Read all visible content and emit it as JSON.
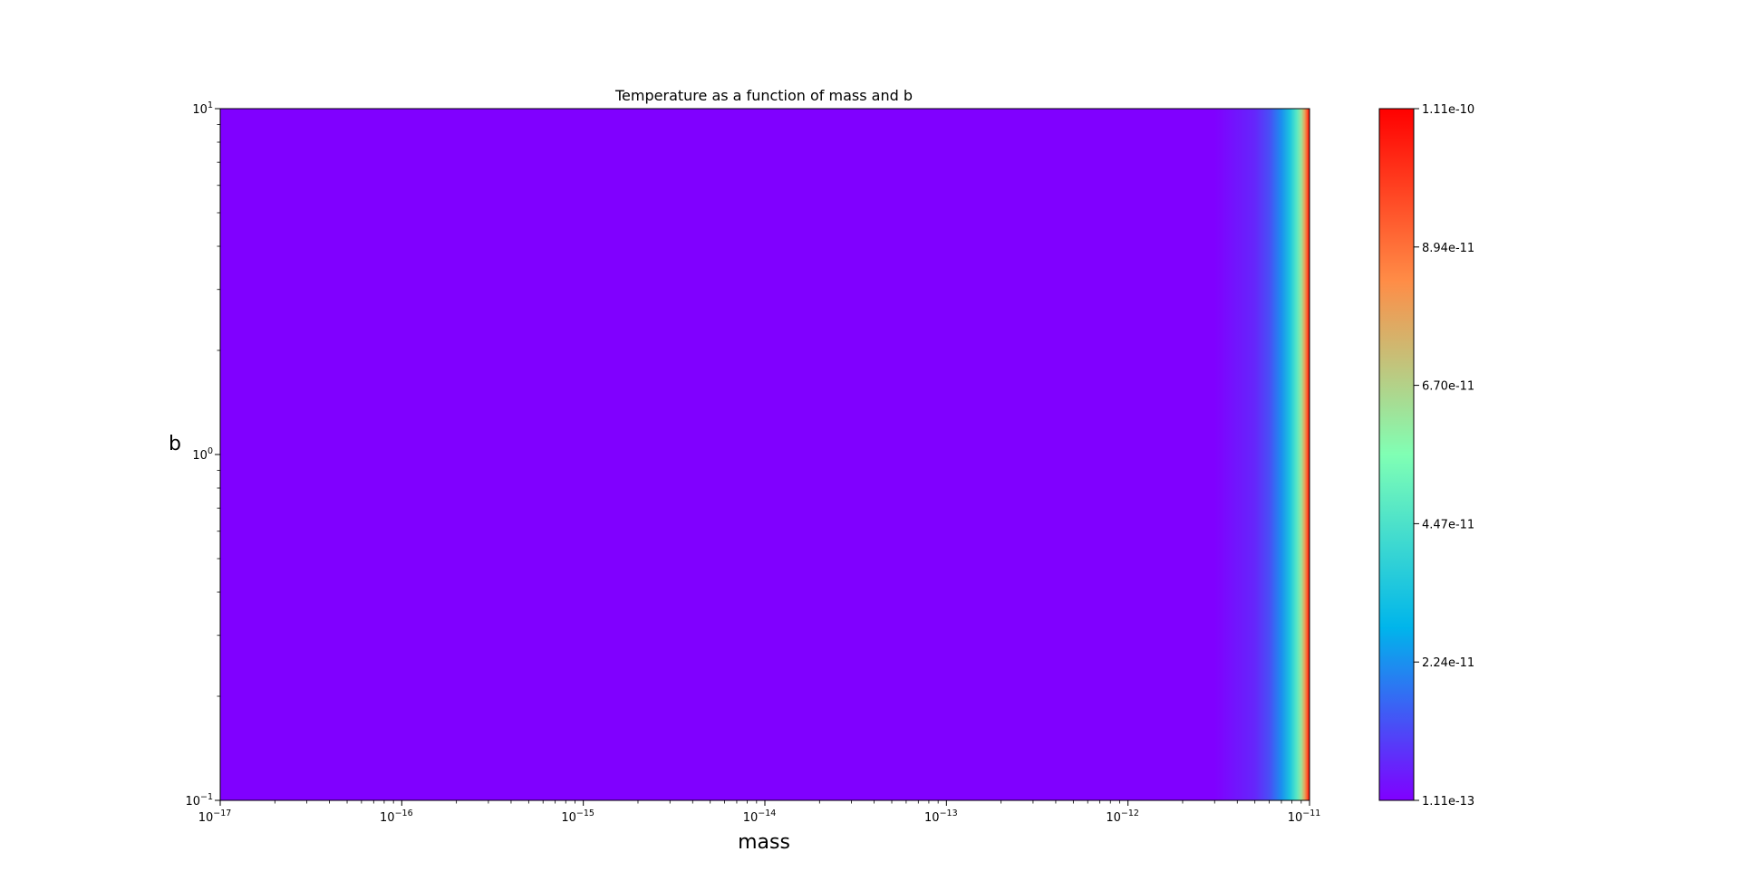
{
  "chart_data": {
    "type": "heatmap",
    "title": "Temperature as a function of mass and b",
    "xlabel": "mass",
    "ylabel": "b",
    "x_scale": "log",
    "y_scale": "log",
    "xlim": [
      1e-17,
      1e-11
    ],
    "ylim": [
      0.1,
      10
    ],
    "x_ticks": [
      {
        "base": "10",
        "exp": "−17"
      },
      {
        "base": "10",
        "exp": "−16"
      },
      {
        "base": "10",
        "exp": "−15"
      },
      {
        "base": "10",
        "exp": "−14"
      },
      {
        "base": "10",
        "exp": "−13"
      },
      {
        "base": "10",
        "exp": "−12"
      },
      {
        "base": "10",
        "exp": "−11"
      }
    ],
    "y_ticks": [
      {
        "base": "10",
        "exp": "−1"
      },
      {
        "base": "10",
        "exp": "0"
      },
      {
        "base": "10",
        "exp": "1"
      }
    ],
    "colormap": "rainbow",
    "colormap_colors": [
      "#8000ff",
      "#00b5eb",
      "#80ffb4",
      "#ff8d47",
      "#ff0000"
    ],
    "colorbar": {
      "vmin": 1.11e-13,
      "vmax": 1.11e-10,
      "tick_labels": [
        "1.11e-13",
        "2.24e-11",
        "4.47e-11",
        "6.70e-11",
        "8.94e-11",
        "1.11e-10"
      ]
    },
    "values_vary_with": "mass",
    "mass_samples": [
      {
        "mass": 1e-17,
        "temperature": 1.11e-13
      },
      {
        "mass": 1e-13,
        "temperature": 1.11e-13
      },
      {
        "mass": 3e-12,
        "temperature": 1.2e-13
      },
      {
        "mass": 5e-12,
        "temperature": 6e-12
      },
      {
        "mass": 6e-12,
        "temperature": 1.2e-11
      },
      {
        "mass": 7e-12,
        "temperature": 2.2e-11
      },
      {
        "mass": 7.8e-12,
        "temperature": 3.4e-11
      },
      {
        "mass": 8.5e-12,
        "temperature": 4.7e-11
      },
      {
        "mass": 9e-12,
        "temperature": 6.2e-11
      },
      {
        "mass": 9.4e-12,
        "temperature": 7.8e-11
      },
      {
        "mass": 9.7e-12,
        "temperature": 9.3e-11
      },
      {
        "mass": 1e-11,
        "temperature": 1.11e-10
      }
    ]
  }
}
